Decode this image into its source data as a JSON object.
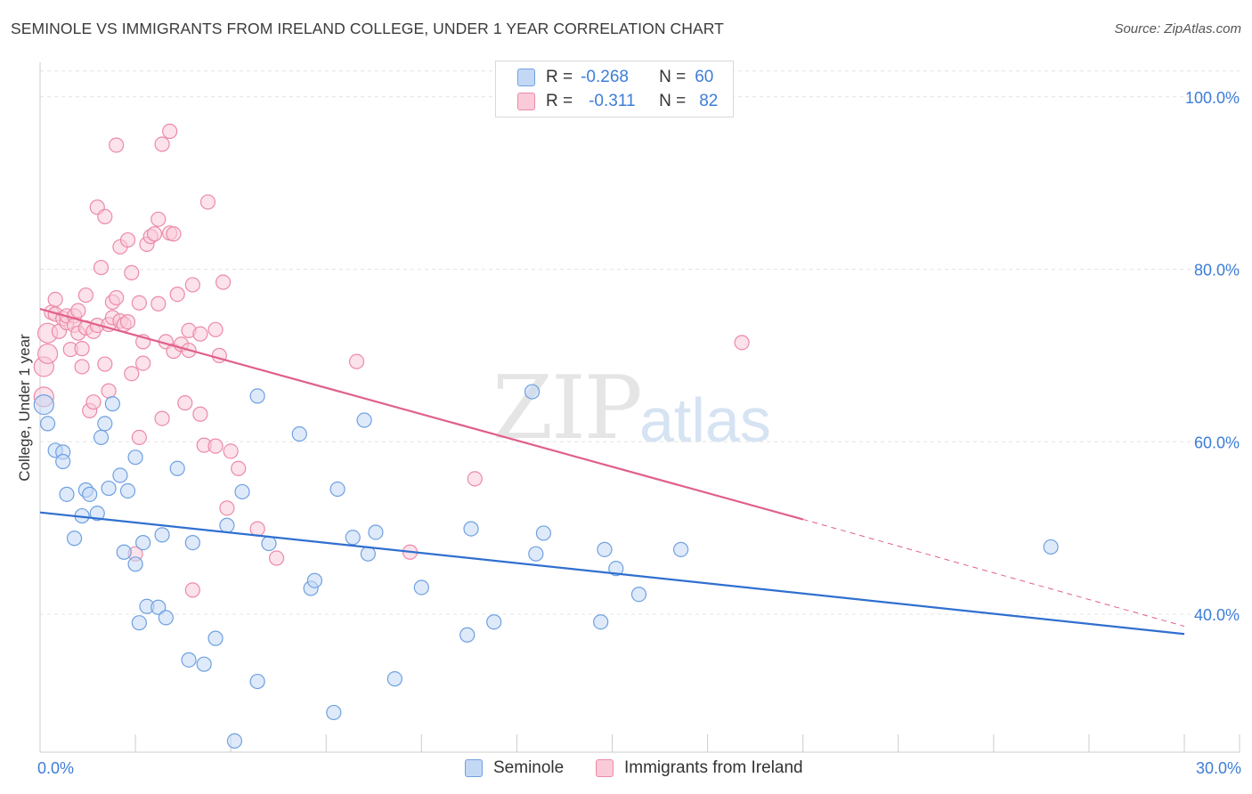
{
  "title": "SEMINOLE VS IMMIGRANTS FROM IRELAND COLLEGE, UNDER 1 YEAR CORRELATION CHART",
  "source": "Source: ZipAtlas.com",
  "watermark": {
    "zip": "ZIP",
    "atlas": "atlas"
  },
  "legend": {
    "r_label": "R =",
    "n_label": "N =",
    "rows": [
      {
        "r": "-0.268",
        "n": "60",
        "color": "#aac8f0"
      },
      {
        "r": "-0.311",
        "n": "82",
        "color": "#f6b9cb"
      }
    ]
  },
  "bottom_legend": [
    "Seminole",
    "Immigrants from Ireland"
  ],
  "colors": {
    "blue_fill": "#c3d8f5",
    "blue_stroke": "#6fa0e0",
    "blue_line": "#2f6fd0",
    "pink_fill": "#f9cbd8",
    "pink_stroke": "#ec8aa8",
    "pink_line": "#e0608a",
    "grid": "#e4e4e4",
    "axis_text": "#3d7dd8"
  },
  "chart_data": {
    "type": "scatter",
    "title": "SEMINOLE VS IMMIGRANTS FROM IRELAND COLLEGE, UNDER 1 YEAR CORRELATION CHART",
    "xlabel": "",
    "ylabel": "College, Under 1 year",
    "xlim": [
      0,
      30
    ],
    "ylim": [
      24,
      104
    ],
    "x_tick_labels": [
      "0.0%",
      "30.0%"
    ],
    "y_ticks": [
      40,
      60,
      80,
      100
    ],
    "y_tick_labels": [
      "40.0%",
      "60.0%",
      "80.0%",
      "100.0%"
    ],
    "series": [
      {
        "name": "Seminole",
        "r": -0.268,
        "n": 60,
        "trend": {
          "x0": 0,
          "y0": 51.8,
          "x1": 30,
          "y1": 37.7
        },
        "points": [
          [
            0.1,
            64.3
          ],
          [
            0.2,
            62.1
          ],
          [
            0.4,
            59.0
          ],
          [
            0.6,
            58.8
          ],
          [
            0.6,
            57.7
          ],
          [
            0.7,
            53.9
          ],
          [
            0.9,
            48.8
          ],
          [
            1.1,
            51.4
          ],
          [
            1.2,
            54.4
          ],
          [
            1.3,
            53.9
          ],
          [
            1.5,
            51.7
          ],
          [
            1.6,
            60.5
          ],
          [
            1.7,
            62.1
          ],
          [
            1.8,
            54.6
          ],
          [
            1.9,
            64.4
          ],
          [
            2.1,
            56.1
          ],
          [
            2.2,
            47.2
          ],
          [
            2.3,
            54.3
          ],
          [
            2.5,
            45.8
          ],
          [
            2.5,
            58.2
          ],
          [
            2.6,
            39.0
          ],
          [
            2.7,
            48.3
          ],
          [
            2.8,
            40.9
          ],
          [
            3.1,
            40.8
          ],
          [
            3.2,
            49.2
          ],
          [
            3.3,
            39.6
          ],
          [
            3.6,
            56.9
          ],
          [
            3.9,
            34.7
          ],
          [
            4.0,
            48.3
          ],
          [
            4.3,
            34.2
          ],
          [
            4.6,
            37.2
          ],
          [
            4.9,
            50.3
          ],
          [
            5.1,
            25.3
          ],
          [
            5.3,
            54.2
          ],
          [
            5.7,
            65.3
          ],
          [
            5.7,
            32.2
          ],
          [
            6.0,
            48.2
          ],
          [
            6.8,
            60.9
          ],
          [
            7.1,
            43.0
          ],
          [
            7.2,
            43.9
          ],
          [
            7.7,
            28.6
          ],
          [
            7.8,
            54.5
          ],
          [
            8.2,
            48.9
          ],
          [
            8.5,
            62.5
          ],
          [
            8.6,
            47.0
          ],
          [
            8.8,
            49.5
          ],
          [
            9.3,
            32.5
          ],
          [
            10.0,
            43.1
          ],
          [
            11.2,
            37.6
          ],
          [
            11.3,
            49.9
          ],
          [
            11.9,
            39.1
          ],
          [
            12.9,
            65.8
          ],
          [
            13.0,
            47.0
          ],
          [
            13.2,
            49.4
          ],
          [
            14.7,
            39.1
          ],
          [
            14.8,
            47.5
          ],
          [
            15.1,
            45.3
          ],
          [
            15.7,
            42.3
          ],
          [
            16.8,
            47.5
          ],
          [
            26.5,
            47.8
          ]
        ]
      },
      {
        "name": "Immigrants from Ireland",
        "r": -0.311,
        "n": 82,
        "trend": {
          "x0": 0,
          "y0": 75.4,
          "x1": 20.0,
          "y1": 51.0,
          "dash_x1": 30,
          "dash_y1": 38.6
        },
        "points": [
          [
            0.1,
            65.2
          ],
          [
            0.1,
            68.7
          ],
          [
            0.2,
            70.2
          ],
          [
            0.2,
            72.6
          ],
          [
            0.3,
            75.0
          ],
          [
            0.4,
            74.8
          ],
          [
            0.4,
            76.5
          ],
          [
            0.5,
            72.8
          ],
          [
            0.6,
            74.3
          ],
          [
            0.7,
            73.8
          ],
          [
            0.7,
            74.6
          ],
          [
            0.8,
            70.7
          ],
          [
            0.9,
            74.6
          ],
          [
            0.9,
            73.5
          ],
          [
            1.0,
            72.6
          ],
          [
            1.0,
            75.2
          ],
          [
            1.1,
            70.8
          ],
          [
            1.1,
            68.7
          ],
          [
            1.2,
            77.0
          ],
          [
            1.2,
            73.2
          ],
          [
            1.3,
            63.6
          ],
          [
            1.4,
            64.6
          ],
          [
            1.4,
            72.8
          ],
          [
            1.5,
            87.2
          ],
          [
            1.5,
            73.5
          ],
          [
            1.6,
            80.2
          ],
          [
            1.7,
            86.1
          ],
          [
            1.7,
            69.0
          ],
          [
            1.8,
            65.9
          ],
          [
            1.8,
            73.6
          ],
          [
            1.9,
            74.4
          ],
          [
            1.9,
            76.2
          ],
          [
            2.0,
            94.4
          ],
          [
            2.0,
            76.7
          ],
          [
            2.1,
            82.6
          ],
          [
            2.1,
            74.0
          ],
          [
            2.2,
            73.6
          ],
          [
            2.3,
            83.4
          ],
          [
            2.3,
            73.9
          ],
          [
            2.4,
            67.9
          ],
          [
            2.4,
            79.6
          ],
          [
            2.5,
            47.0
          ],
          [
            2.6,
            76.1
          ],
          [
            2.6,
            60.5
          ],
          [
            2.7,
            69.1
          ],
          [
            2.7,
            71.6
          ],
          [
            2.8,
            82.9
          ],
          [
            2.9,
            83.8
          ],
          [
            3.0,
            84.1
          ],
          [
            3.1,
            85.8
          ],
          [
            3.1,
            76.0
          ],
          [
            3.2,
            62.7
          ],
          [
            3.2,
            94.5
          ],
          [
            3.3,
            71.6
          ],
          [
            3.4,
            96.0
          ],
          [
            3.4,
            84.2
          ],
          [
            3.5,
            84.1
          ],
          [
            3.5,
            70.5
          ],
          [
            3.6,
            77.1
          ],
          [
            3.7,
            71.3
          ],
          [
            3.8,
            64.5
          ],
          [
            3.9,
            70.6
          ],
          [
            3.9,
            72.9
          ],
          [
            4.0,
            78.2
          ],
          [
            4.0,
            42.8
          ],
          [
            4.2,
            72.5
          ],
          [
            4.2,
            63.2
          ],
          [
            4.3,
            59.6
          ],
          [
            4.4,
            87.8
          ],
          [
            4.6,
            59.5
          ],
          [
            4.6,
            73.0
          ],
          [
            4.7,
            70.0
          ],
          [
            4.8,
            78.5
          ],
          [
            4.9,
            52.3
          ],
          [
            5.0,
            58.9
          ],
          [
            5.2,
            56.9
          ],
          [
            5.7,
            49.9
          ],
          [
            6.2,
            46.5
          ],
          [
            8.3,
            69.3
          ],
          [
            9.7,
            47.2
          ],
          [
            11.4,
            55.7
          ],
          [
            18.4,
            71.5
          ]
        ]
      }
    ]
  }
}
